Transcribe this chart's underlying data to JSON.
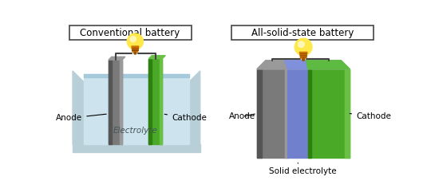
{
  "title_left": "Conventional battery",
  "title_right": "All-solid-state battery",
  "label_anode_left": "Anode",
  "label_cathode_left": "Cathode",
  "label_electrolyte_left": "Electrolyte",
  "label_anode_right": "Anode",
  "label_cathode_right": "Cathode",
  "label_electrolyte_right": "Solid electrolyte",
  "bg_color": "#ffffff",
  "colors": {
    "tank_liquid": "#cde4ee",
    "tank_wall_light": "#b8cfd8",
    "tank_wall_dark": "#8aaab5",
    "anode_gray_light": "#9a9a9a",
    "anode_gray_mid": "#7a7a7a",
    "anode_gray_dark": "#555555",
    "cathode_green_light": "#6abf45",
    "cathode_green_mid": "#4aaa28",
    "cathode_green_dark": "#2e8010",
    "solid_electrolyte_blue": "#7080cc",
    "solid_electrolyte_blue_top": "#8090dd",
    "bulb_yellow_bright": "#ffe84a",
    "bulb_yellow_mid": "#f5c020",
    "bulb_orange": "#cc7000",
    "wire_color": "#444444"
  }
}
